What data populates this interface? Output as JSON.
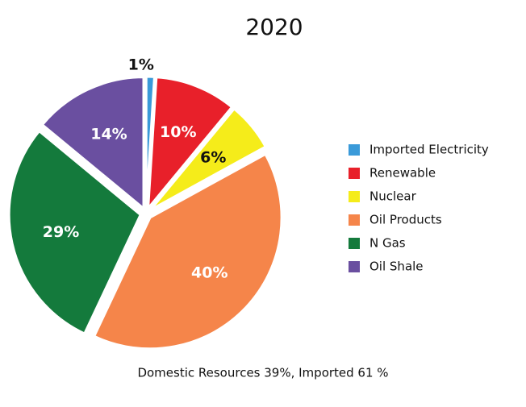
{
  "chart_data": {
    "type": "pie",
    "title": "2020",
    "categories": [
      "Imported Electricity",
      "Renewable",
      "Nuclear",
      "Oil Products",
      "N Gas",
      "Oil Shale"
    ],
    "values": [
      1,
      10,
      6,
      40,
      29,
      14
    ],
    "value_labels": [
      "1%",
      "10%",
      "6%",
      "40%",
      "29%",
      "14%"
    ],
    "colors": [
      "#3a9ad9",
      "#e8202a",
      "#f5ec1a",
      "#f5854a",
      "#147a3c",
      "#6a4fa0"
    ],
    "legend": "right",
    "footnote": "Domestic Resources 39%, Imported 61 %"
  }
}
